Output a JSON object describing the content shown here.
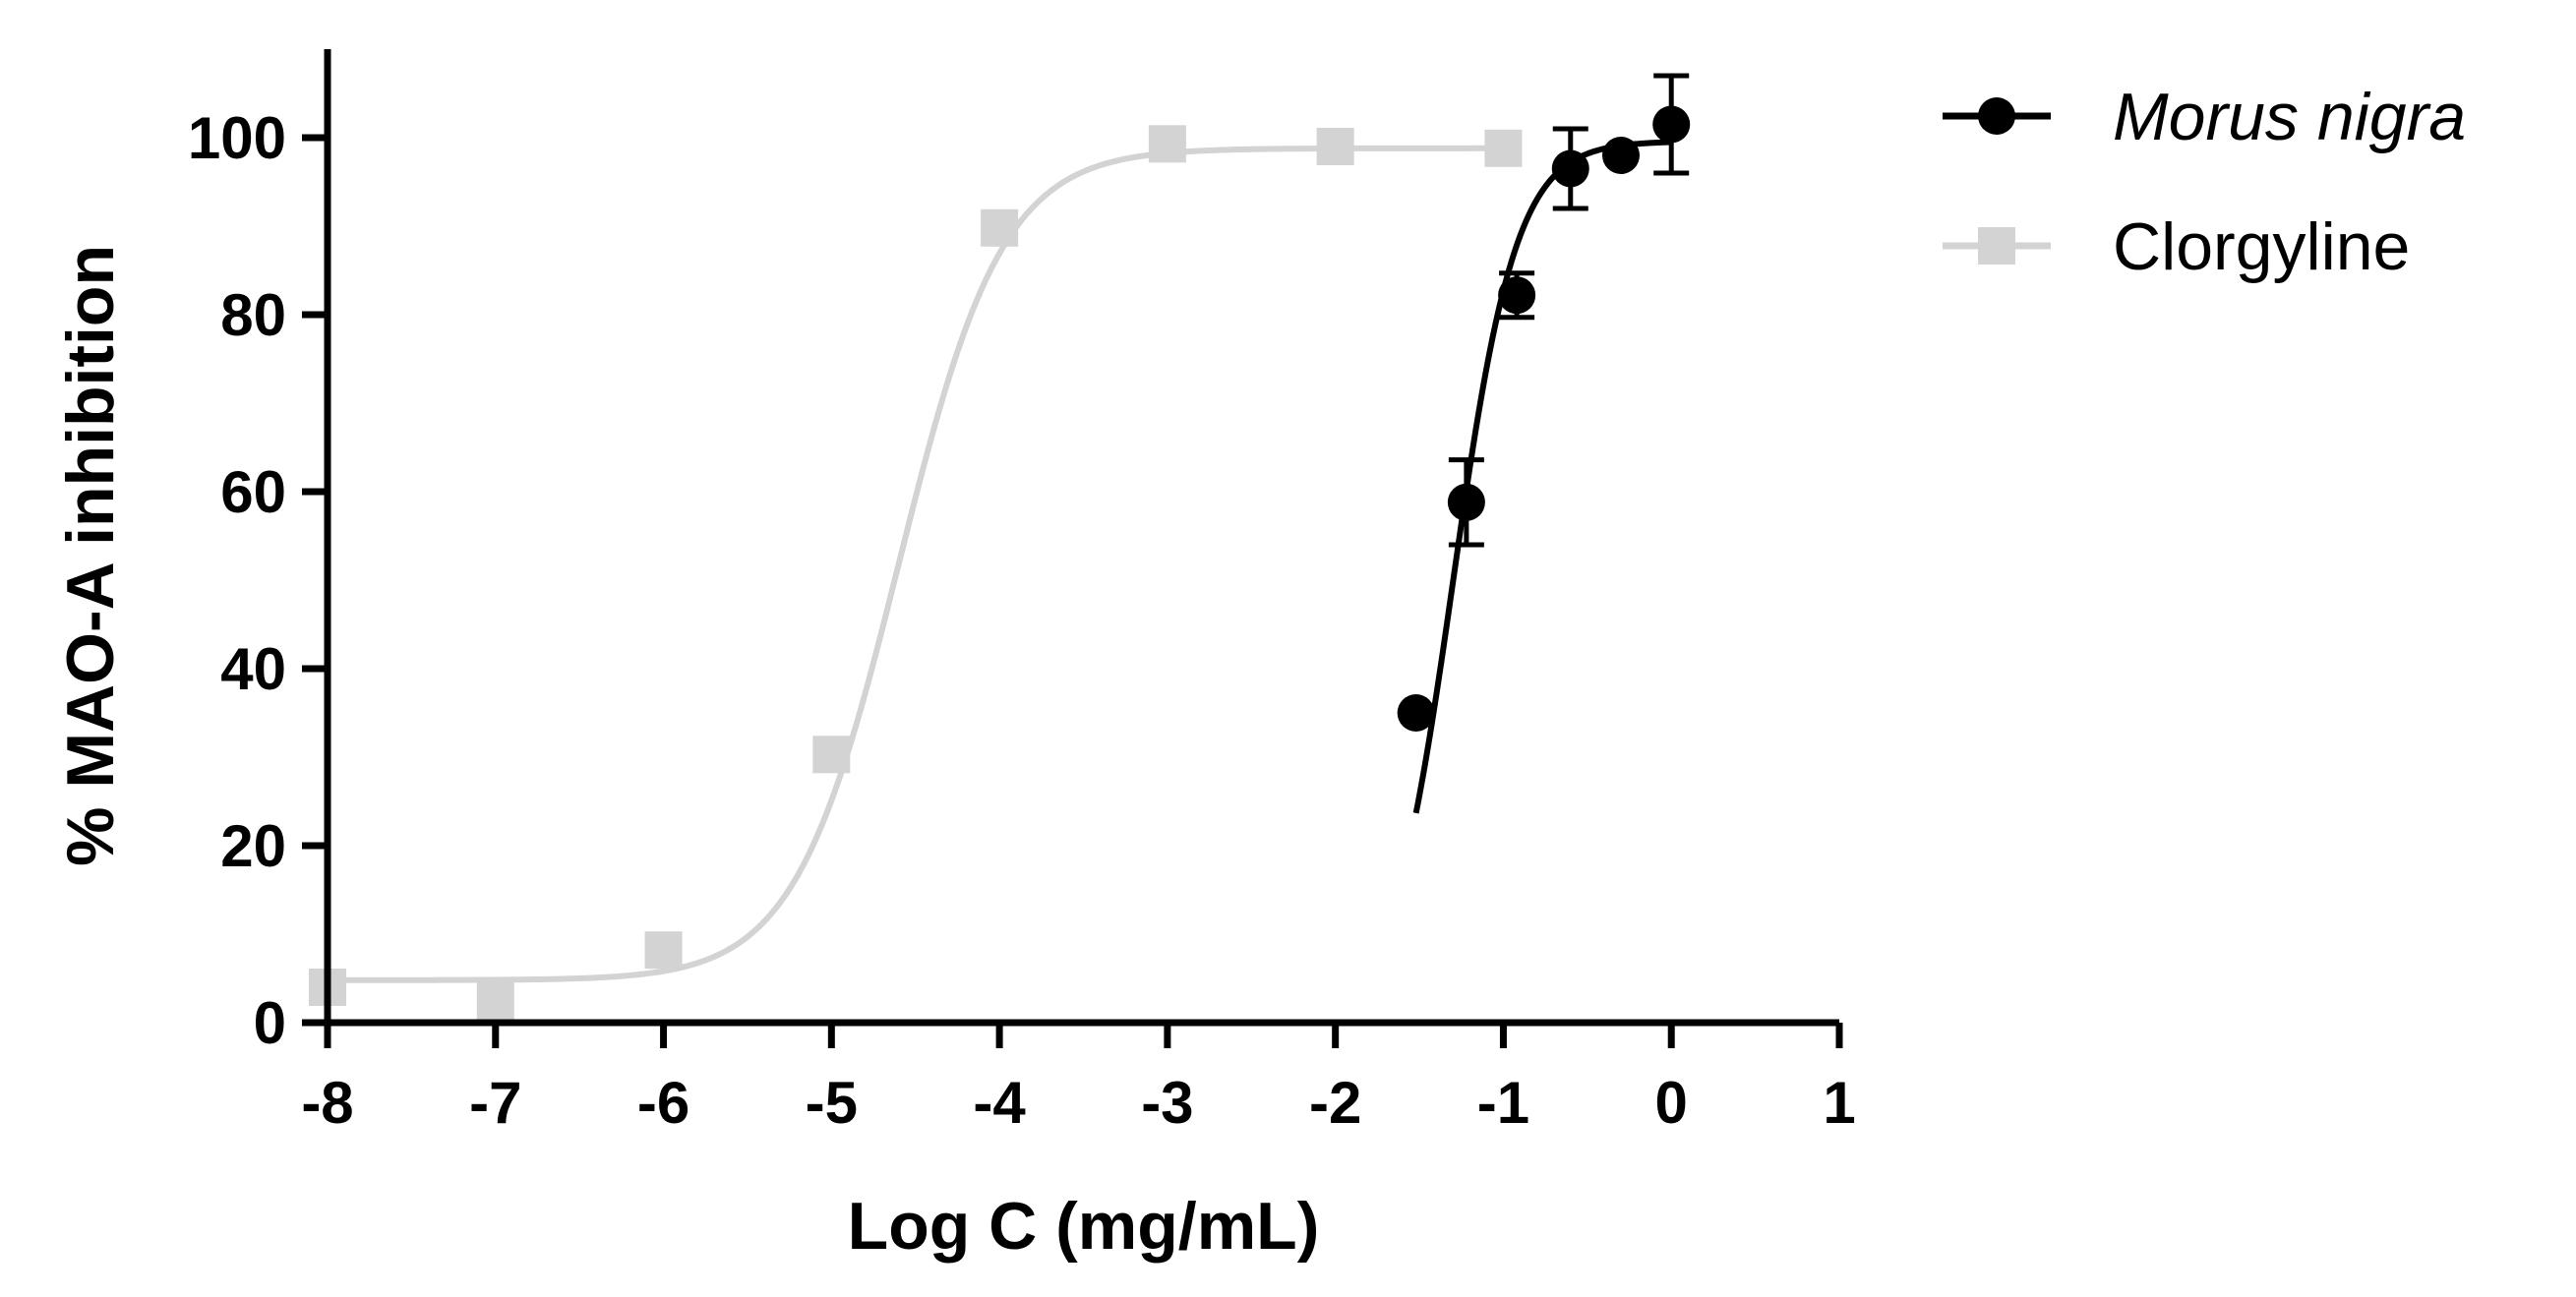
{
  "chart_data": {
    "type": "scatter",
    "xlabel": "Log C (mg/mL)",
    "ylabel": "% MAO-A inhibition",
    "xlim": [
      -8,
      1
    ],
    "ylim": [
      0,
      110
    ],
    "x_ticks": [
      -8,
      -7,
      -6,
      -5,
      -4,
      -3,
      -2,
      -1,
      0,
      1
    ],
    "y_ticks": [
      0,
      20,
      40,
      60,
      80,
      100
    ],
    "grid": false,
    "legend_position": "top-right",
    "series": [
      {
        "name": "Morus nigra",
        "marker": "circle",
        "color": "#000000",
        "points": [
          {
            "x": -1.52,
            "y": 35.0,
            "err": 0
          },
          {
            "x": -1.22,
            "y": 58.8,
            "err": 4.8
          },
          {
            "x": -0.92,
            "y": 82.2,
            "err": 2.5
          },
          {
            "x": -0.6,
            "y": 96.5,
            "err": 4.5
          },
          {
            "x": -0.3,
            "y": 98.0,
            "err": 0
          },
          {
            "x": 0.0,
            "y": 101.5,
            "err": 5.5
          }
        ],
        "fit": {
          "bottom": 0,
          "top": 99.6,
          "logEC50": -1.3,
          "hill": 2.3
        }
      },
      {
        "name": "Clorgyline",
        "marker": "square",
        "color": "#d3d3d3",
        "points": [
          {
            "x": -8,
            "y": 4.0
          },
          {
            "x": -7,
            "y": 2.5
          },
          {
            "x": -6,
            "y": 8.2
          },
          {
            "x": -5,
            "y": 30.3
          },
          {
            "x": -4,
            "y": 89.8
          },
          {
            "x": -3,
            "y": 99.3
          },
          {
            "x": -2,
            "y": 99.0
          },
          {
            "x": -1,
            "y": 98.8
          }
        ],
        "fit": {
          "bottom": 4.8,
          "top": 98.8,
          "logEC50": -4.6,
          "hill": 1.4
        }
      }
    ]
  }
}
